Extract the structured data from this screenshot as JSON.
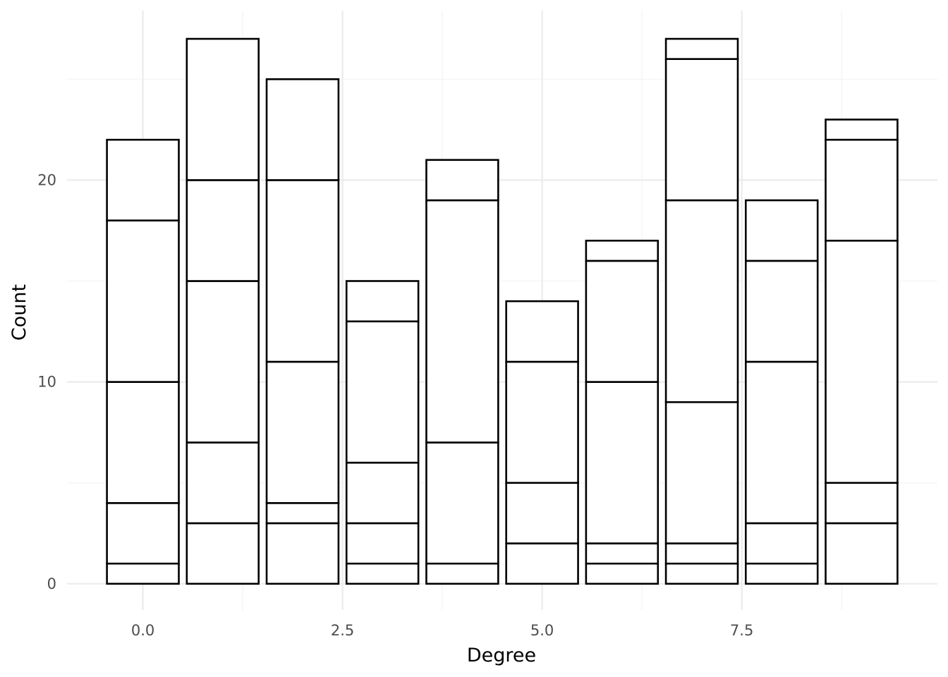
{
  "chart_data": {
    "type": "bar",
    "stacked": true,
    "xlabel": "Degree",
    "ylabel": "Count",
    "xlim": [
      -0.95,
      9.95
    ],
    "ylim": [
      -1.3,
      28.4
    ],
    "x_major_ticks": [
      0.0,
      2.5,
      5.0,
      7.5
    ],
    "x_tick_labels": [
      "0.0",
      "2.5",
      "5.0",
      "7.5"
    ],
    "x_minor_ticks": [
      1.25,
      3.75,
      6.25,
      8.75
    ],
    "y_major_ticks": [
      0,
      10,
      20
    ],
    "y_tick_labels": [
      "0",
      "10",
      "20"
    ],
    "y_minor_ticks": [
      5,
      15,
      25
    ],
    "grid": true,
    "bar_fill": "#ffffff",
    "bar_outline": "#000000",
    "x": [
      0,
      1,
      2,
      3,
      4,
      5,
      6,
      7,
      8,
      9
    ],
    "cumulative_boundaries": [
      [
        1,
        4,
        10,
        18,
        22
      ],
      [
        3,
        7,
        15,
        20,
        27
      ],
      [
        3,
        4,
        11,
        20,
        25
      ],
      [
        1,
        3,
        6,
        13,
        15
      ],
      [
        1,
        7,
        19,
        21
      ],
      [
        2,
        5,
        11,
        14
      ],
      [
        1,
        2,
        10,
        16,
        17
      ],
      [
        1,
        2,
        9,
        19,
        26,
        27
      ],
      [
        1,
        3,
        11,
        16,
        19
      ],
      [
        3,
        5,
        17,
        22,
        23
      ]
    ]
  }
}
